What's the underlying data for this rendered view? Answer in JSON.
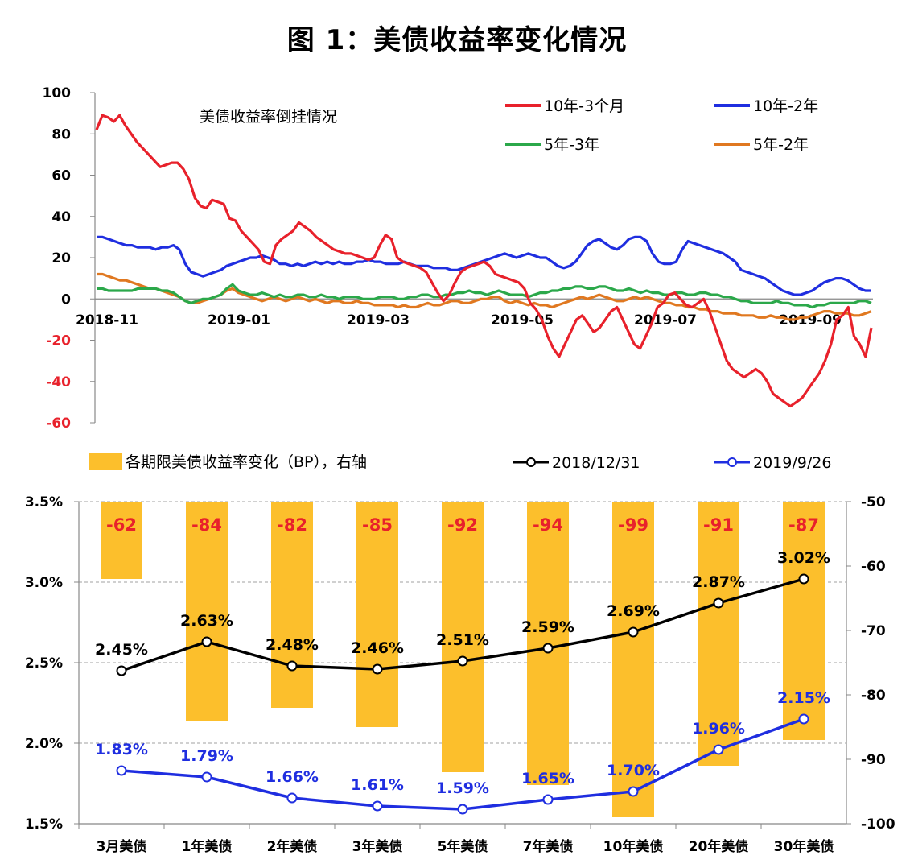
{
  "title": "图 1：美债收益率变化情况",
  "chart_data": [
    {
      "type": "line",
      "title": "美债收益率倒挂情况",
      "ylim": [
        -60,
        100
      ],
      "yticks": [
        100,
        80,
        60,
        40,
        20,
        0,
        -20,
        -40,
        -60
      ],
      "xtick_labels": [
        "2018-11",
        "2019-01",
        "2019-03",
        "2019-05",
        "2019-07",
        "2019-09"
      ],
      "legend_position": "top-right",
      "series": [
        {
          "name": "10年-3个月",
          "color": "#e8212b",
          "values": [
            82,
            89,
            88,
            86,
            89,
            84,
            80,
            76,
            73,
            70,
            67,
            64,
            65,
            66,
            66,
            63,
            58,
            49,
            45,
            44,
            48,
            47,
            46,
            39,
            38,
            33,
            30,
            27,
            24,
            18,
            17,
            26,
            29,
            31,
            33,
            37,
            35,
            33,
            30,
            28,
            26,
            24,
            23,
            22,
            22,
            21,
            20,
            19,
            20,
            26,
            31,
            29,
            20,
            18,
            17,
            16,
            15,
            13,
            8,
            3,
            -1,
            2,
            8,
            13,
            15,
            16,
            17,
            18,
            16,
            12,
            11,
            10,
            9,
            8,
            5,
            -2,
            -5,
            -10,
            -18,
            -24,
            -28,
            -22,
            -16,
            -10,
            -8,
            -12,
            -16,
            -14,
            -10,
            -6,
            -4,
            -10,
            -16,
            -22,
            -24,
            -18,
            -12,
            -4,
            -2,
            2,
            3,
            0,
            -3,
            -4,
            -2,
            0,
            -6,
            -14,
            -22,
            -30,
            -34,
            -36,
            -38,
            -36,
            -34,
            -36,
            -40,
            -46,
            -48,
            -50,
            -52,
            -50,
            -48,
            -44,
            -40,
            -36,
            -30,
            -22,
            -10,
            -8,
            -4,
            -18,
            -22,
            -28,
            -14
          ]
        },
        {
          "name": "10年-2年",
          "color": "#1f2ee0",
          "values": [
            30,
            30,
            29,
            28,
            27,
            26,
            26,
            25,
            25,
            25,
            24,
            25,
            25,
            26,
            24,
            17,
            13,
            12,
            11,
            12,
            13,
            14,
            16,
            17,
            18,
            19,
            20,
            20,
            21,
            20,
            19,
            17,
            17,
            16,
            17,
            16,
            17,
            18,
            17,
            18,
            17,
            18,
            17,
            17,
            18,
            18,
            19,
            18,
            18,
            17,
            17,
            17,
            18,
            17,
            16,
            16,
            16,
            15,
            15,
            15,
            14,
            14,
            15,
            16,
            17,
            18,
            19,
            20,
            21,
            22,
            21,
            20,
            21,
            22,
            21,
            20,
            20,
            18,
            16,
            15,
            16,
            18,
            22,
            26,
            28,
            29,
            27,
            25,
            24,
            26,
            29,
            30,
            30,
            28,
            22,
            18,
            17,
            17,
            18,
            24,
            28,
            27,
            26,
            25,
            24,
            23,
            22,
            20,
            18,
            14,
            13,
            12,
            11,
            10,
            8,
            6,
            4,
            3,
            2,
            2,
            3,
            4,
            6,
            8,
            9,
            10,
            10,
            9,
            7,
            5,
            4,
            4
          ]
        },
        {
          "name": "5年-3年",
          "color": "#2ba84a",
          "values": [
            5,
            5,
            4,
            4,
            4,
            4,
            4,
            5,
            5,
            5,
            5,
            4,
            4,
            3,
            1,
            -1,
            -2,
            -1,
            0,
            0,
            1,
            2,
            5,
            7,
            4,
            3,
            2,
            2,
            3,
            2,
            1,
            2,
            1,
            1,
            2,
            2,
            1,
            1,
            2,
            1,
            1,
            0,
            1,
            1,
            1,
            0,
            0,
            0,
            1,
            1,
            1,
            0,
            0,
            1,
            1,
            2,
            2,
            1,
            1,
            2,
            2,
            3,
            3,
            4,
            3,
            3,
            2,
            3,
            4,
            3,
            2,
            2,
            2,
            1,
            2,
            3,
            3,
            4,
            4,
            5,
            5,
            6,
            6,
            5,
            5,
            6,
            6,
            5,
            4,
            4,
            5,
            4,
            3,
            4,
            3,
            3,
            2,
            2,
            3,
            3,
            2,
            2,
            3,
            3,
            2,
            2,
            1,
            1,
            0,
            -1,
            -1,
            -2,
            -2,
            -2,
            -2,
            -1,
            -2,
            -2,
            -3,
            -3,
            -3,
            -4,
            -3,
            -3,
            -2,
            -2,
            -2,
            -2,
            -2,
            -1,
            -1,
            -2
          ]
        },
        {
          "name": "5年-2年",
          "color": "#e07820",
          "values": [
            12,
            12,
            11,
            10,
            9,
            9,
            8,
            7,
            6,
            5,
            5,
            4,
            3,
            2,
            1,
            -1,
            -2,
            -2,
            -1,
            0,
            1,
            2,
            4,
            5,
            3,
            2,
            1,
            0,
            -1,
            0,
            1,
            0,
            -1,
            0,
            1,
            0,
            -1,
            0,
            -1,
            -2,
            -1,
            -1,
            -2,
            -2,
            -1,
            -2,
            -2,
            -3,
            -3,
            -3,
            -3,
            -4,
            -3,
            -4,
            -4,
            -3,
            -2,
            -3,
            -3,
            -2,
            -1,
            -1,
            -2,
            -2,
            -1,
            0,
            0,
            1,
            1,
            -1,
            -2,
            -1,
            -2,
            -3,
            -2,
            -3,
            -3,
            -4,
            -3,
            -2,
            -1,
            0,
            1,
            0,
            1,
            2,
            1,
            0,
            -1,
            -1,
            0,
            1,
            0,
            1,
            0,
            -1,
            -2,
            -2,
            -3,
            -3,
            -4,
            -4,
            -5,
            -5,
            -6,
            -6,
            -7,
            -7,
            -7,
            -8,
            -8,
            -8,
            -9,
            -9,
            -8,
            -9,
            -9,
            -10,
            -10,
            -9,
            -9,
            -8,
            -7,
            -6,
            -6,
            -7,
            -7,
            -7,
            -8,
            -8,
            -7,
            -6
          ]
        }
      ]
    },
    {
      "type": "bar",
      "categories": [
        "3月美债",
        "1年美债",
        "2年美债",
        "3年美债",
        "5年美债",
        "7年美债",
        "10年美债",
        "20年美债",
        "30年美债"
      ],
      "left_ylim": [
        1.5,
        3.5
      ],
      "left_yticks": [
        "3.5%",
        "3.0%",
        "2.5%",
        "2.0%",
        "1.5%"
      ],
      "right_ylim": [
        -100,
        -50
      ],
      "right_yticks": [
        "-50",
        "-60",
        "-70",
        "-80",
        "-90",
        "-100"
      ],
      "bars": {
        "name": "各期限美债收益率变化（BP），右轴",
        "color": "#fcbf2c",
        "label_color": "#e8212b",
        "values": [
          -62,
          -84,
          -82,
          -85,
          -92,
          -94,
          -99,
          -91,
          -87
        ],
        "labels": [
          "-62",
          "-84",
          "-82",
          "-85",
          "-92",
          "-94",
          "-99",
          "-91",
          "-87"
        ]
      },
      "series": [
        {
          "name": "2018/12/31",
          "color": "#000000",
          "values": [
            2.45,
            2.63,
            2.48,
            2.46,
            2.51,
            2.59,
            2.69,
            2.87,
            3.02
          ],
          "labels": [
            "2.45%",
            "2.63%",
            "2.48%",
            "2.46%",
            "2.51%",
            "2.59%",
            "2.69%",
            "2.87%",
            "3.02%"
          ]
        },
        {
          "name": "2019/9/26",
          "color": "#1f2ee0",
          "values": [
            1.83,
            1.79,
            1.66,
            1.61,
            1.59,
            1.65,
            1.7,
            1.96,
            2.15
          ],
          "labels": [
            "1.83%",
            "1.79%",
            "1.66%",
            "1.61%",
            "1.59%",
            "1.65%",
            "1.70%",
            "1.96%",
            "2.15%"
          ]
        }
      ]
    }
  ]
}
